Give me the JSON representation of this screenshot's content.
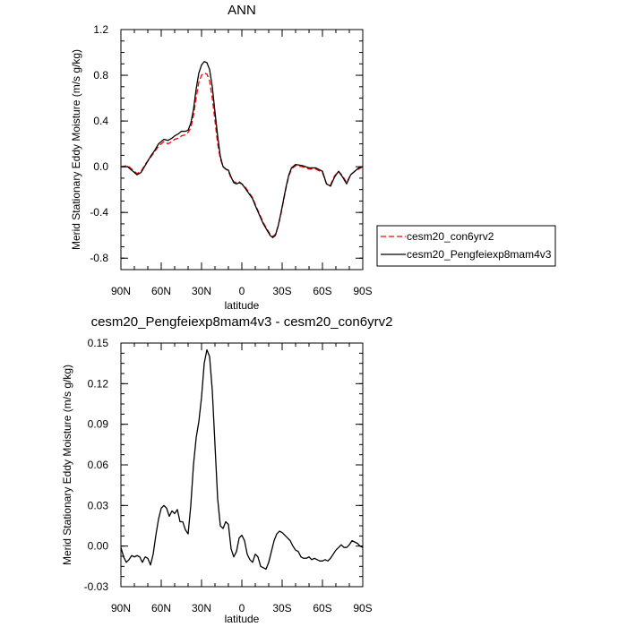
{
  "chart_data": [
    {
      "type": "line",
      "title": "ANN",
      "xlabel": "latitude",
      "ylabel": "Merid Stationary Eddy Moisture (m/s g/kg)",
      "xlim": [
        90,
        -90
      ],
      "ylim": [
        -0.9,
        1.2
      ],
      "x_ticks": [
        90,
        60,
        30,
        0,
        -30,
        -60,
        -90
      ],
      "x_tick_labels": [
        "90N",
        "60N",
        "30N",
        "0",
        "30S",
        "60S",
        "90S"
      ],
      "y_ticks": [
        -0.8,
        -0.4,
        0.0,
        0.4,
        0.8,
        1.2
      ],
      "y_tick_labels": [
        "-0.8",
        "-0.4",
        "0.0",
        "0.4",
        "0.8",
        "1.2"
      ],
      "legend_position": "right",
      "series": [
        {
          "name": "cesm20_con6yrv2",
          "color": "#ff0000",
          "dash": "dashed",
          "x": [
            90,
            85,
            82,
            78,
            75,
            72,
            68,
            65,
            62,
            58,
            55,
            52,
            50,
            47,
            45,
            42,
            40,
            38,
            36,
            34,
            32,
            30,
            28,
            26,
            24,
            22,
            20,
            18,
            16,
            14,
            12,
            10,
            8,
            6,
            4,
            2,
            0,
            -2,
            -5,
            -8,
            -10,
            -13,
            -16,
            -19,
            -21,
            -23,
            -25,
            -27,
            -29,
            -31,
            -33,
            -35,
            -37,
            -40,
            -45,
            -50,
            -55,
            -60,
            -63,
            -66,
            -69,
            -72,
            -75,
            -78,
            -81,
            -84,
            -87,
            -90
          ],
          "y": [
            0.0,
            0.01,
            -0.02,
            -0.06,
            -0.04,
            0.02,
            0.08,
            0.13,
            0.18,
            0.22,
            0.2,
            0.22,
            0.24,
            0.25,
            0.27,
            0.28,
            0.3,
            0.34,
            0.45,
            0.6,
            0.74,
            0.8,
            0.82,
            0.81,
            0.75,
            0.6,
            0.4,
            0.2,
            0.07,
            0.0,
            -0.02,
            -0.04,
            -0.1,
            -0.13,
            -0.14,
            -0.13,
            -0.15,
            -0.17,
            -0.22,
            -0.27,
            -0.33,
            -0.41,
            -0.49,
            -0.55,
            -0.59,
            -0.61,
            -0.59,
            -0.52,
            -0.42,
            -0.3,
            -0.18,
            -0.08,
            -0.02,
            0.01,
            0.0,
            -0.02,
            -0.02,
            -0.05,
            -0.15,
            -0.16,
            -0.08,
            -0.04,
            -0.08,
            -0.14,
            -0.07,
            -0.04,
            -0.02,
            0.0
          ]
        },
        {
          "name": "cesm20_Pengfeiexp8mam4v3",
          "color": "#000000",
          "dash": "solid",
          "x": [
            90,
            85,
            82,
            78,
            75,
            72,
            68,
            65,
            62,
            58,
            55,
            52,
            50,
            47,
            45,
            42,
            40,
            38,
            36,
            34,
            32,
            30,
            28,
            26,
            24,
            22,
            20,
            18,
            16,
            14,
            12,
            10,
            8,
            6,
            4,
            2,
            0,
            -2,
            -5,
            -8,
            -10,
            -13,
            -16,
            -19,
            -21,
            -23,
            -25,
            -27,
            -29,
            -31,
            -33,
            -35,
            -37,
            -40,
            -45,
            -50,
            -55,
            -60,
            -63,
            -66,
            -69,
            -72,
            -75,
            -78,
            -81,
            -84,
            -87,
            -90
          ],
          "y": [
            0.0,
            0.0,
            -0.03,
            -0.07,
            -0.05,
            0.01,
            0.09,
            0.14,
            0.2,
            0.24,
            0.23,
            0.25,
            0.27,
            0.29,
            0.31,
            0.31,
            0.32,
            0.38,
            0.5,
            0.68,
            0.82,
            0.89,
            0.92,
            0.91,
            0.85,
            0.7,
            0.48,
            0.27,
            0.09,
            0.0,
            -0.02,
            -0.03,
            -0.09,
            -0.14,
            -0.15,
            -0.14,
            -0.15,
            -0.18,
            -0.23,
            -0.28,
            -0.34,
            -0.42,
            -0.5,
            -0.56,
            -0.6,
            -0.62,
            -0.6,
            -0.52,
            -0.41,
            -0.29,
            -0.17,
            -0.07,
            -0.01,
            0.02,
            0.01,
            -0.01,
            -0.01,
            -0.04,
            -0.15,
            -0.17,
            -0.09,
            -0.04,
            -0.09,
            -0.15,
            -0.07,
            -0.04,
            -0.01,
            0.0
          ]
        }
      ]
    },
    {
      "type": "line",
      "title": "cesm20_Pengfeiexp8mam4v3 - cesm20_con6yrv2",
      "xlabel": "latitude",
      "ylabel": "Merid Stationary Eddy Moisture (m/s g/kg)",
      "xlim": [
        90,
        -90
      ],
      "ylim": [
        -0.03,
        0.15
      ],
      "x_ticks": [
        90,
        60,
        30,
        0,
        -30,
        -60,
        -90
      ],
      "x_tick_labels": [
        "90N",
        "60N",
        "30N",
        "0",
        "30S",
        "60S",
        "90S"
      ],
      "y_ticks": [
        -0.03,
        0.0,
        0.03,
        0.06,
        0.09,
        0.12,
        0.15
      ],
      "y_tick_labels": [
        "-0.03",
        "0.00",
        "0.03",
        "0.06",
        "0.09",
        "0.12",
        "0.15"
      ],
      "series": [
        {
          "color": "#000000",
          "dash": "solid",
          "x": [
            90,
            88,
            86,
            84,
            82,
            80,
            78,
            76,
            74,
            72,
            70,
            68,
            66,
            64,
            62,
            60,
            58,
            56,
            54,
            52,
            50,
            48,
            46,
            44,
            42,
            40,
            38,
            36,
            34,
            32,
            30,
            28,
            26,
            24,
            22,
            20,
            18,
            16,
            14,
            12,
            10,
            8,
            6,
            4,
            2,
            0,
            -2,
            -4,
            -6,
            -8,
            -10,
            -12,
            -14,
            -16,
            -18,
            -20,
            -22,
            -24,
            -26,
            -28,
            -30,
            -32,
            -34,
            -36,
            -38,
            -40,
            -42,
            -44,
            -46,
            -48,
            -50,
            -52,
            -54,
            -56,
            -58,
            -60,
            -62,
            -64,
            -66,
            -68,
            -70,
            -72,
            -74,
            -76,
            -78,
            -80,
            -82,
            -84,
            -86,
            -88,
            -90
          ],
          "y": [
            -0.001,
            -0.008,
            -0.012,
            -0.01,
            -0.007,
            -0.008,
            -0.007,
            -0.008,
            -0.012,
            -0.008,
            -0.009,
            -0.014,
            -0.006,
            0.008,
            0.02,
            0.028,
            0.03,
            0.028,
            0.022,
            0.026,
            0.024,
            0.027,
            0.018,
            0.018,
            0.012,
            0.009,
            0.03,
            0.06,
            0.08,
            0.092,
            0.11,
            0.135,
            0.145,
            0.14,
            0.115,
            0.075,
            0.035,
            0.015,
            0.013,
            0.018,
            0.016,
            -0.002,
            -0.008,
            -0.004,
            0.006,
            0.008,
            0.004,
            -0.006,
            -0.01,
            -0.012,
            -0.006,
            -0.008,
            -0.015,
            -0.016,
            -0.017,
            -0.012,
            -0.004,
            0.004,
            0.009,
            0.011,
            0.01,
            0.008,
            0.006,
            0.004,
            0.0,
            -0.003,
            -0.004,
            -0.008,
            -0.009,
            -0.009,
            -0.008,
            -0.01,
            -0.009,
            -0.01,
            -0.011,
            -0.011,
            -0.01,
            -0.011,
            -0.009,
            -0.006,
            -0.003,
            -0.001,
            0.001,
            -0.001,
            -0.001,
            0.001,
            0.004,
            0.003,
            0.002,
            0.0,
            -0.001
          ]
        }
      ]
    }
  ]
}
